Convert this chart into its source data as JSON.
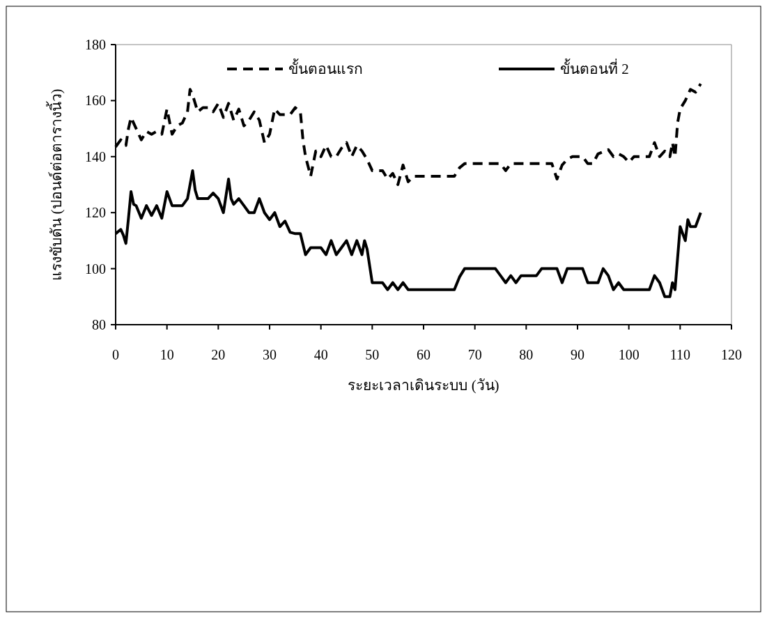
{
  "chart_data": {
    "type": "line",
    "xlabel": "ระยะเวลาเดินระบบ (วัน)",
    "ylabel": "แรงขับดัน (ปอนด์ต่อตารางนิ้ว)",
    "xlim": [
      0,
      120
    ],
    "xticks": [
      0,
      10,
      20,
      30,
      40,
      50,
      60,
      70,
      80,
      90,
      100,
      110,
      120
    ],
    "ylim": [
      80,
      180
    ],
    "yticks": [
      80,
      100,
      120,
      140,
      160,
      180
    ],
    "legend": "top",
    "grid": false,
    "marker": "none",
    "series": [
      {
        "name": "ขั้นตอนแรก",
        "color": "#000000",
        "line_style": "dashed",
        "x": [
          0,
          1,
          2,
          2.5,
          3,
          4,
          5,
          6,
          7,
          8,
          9,
          10,
          11,
          12,
          13,
          14,
          14.5,
          15,
          16,
          17,
          18,
          19,
          20,
          21,
          22,
          23,
          24,
          25,
          26,
          27,
          28,
          29,
          30,
          31,
          32,
          34,
          35,
          36,
          36.5,
          37,
          38,
          39,
          40,
          41,
          42,
          43,
          44,
          45,
          46,
          47,
          48,
          49,
          50,
          52,
          53,
          54,
          55,
          56,
          57,
          58,
          66,
          67,
          68,
          75,
          76,
          77,
          85,
          86,
          87,
          88,
          89,
          91,
          92,
          93,
          94,
          96,
          97,
          98,
          99,
          100,
          101,
          104,
          105,
          106,
          107,
          108,
          108.5,
          109,
          109.5,
          110,
          111,
          112,
          113,
          114
        ],
        "values": [
          143.5,
          146,
          144,
          150,
          154,
          150,
          146,
          149,
          148,
          149,
          148,
          157,
          148,
          151,
          152,
          156,
          164,
          162,
          156,
          157.5,
          157.5,
          156,
          159,
          154,
          159,
          153,
          157,
          151,
          153,
          156,
          153,
          145,
          148,
          157,
          155,
          155,
          157.5,
          156,
          146,
          140,
          133,
          142,
          140,
          144,
          140,
          140,
          143,
          145,
          140,
          144,
          142,
          139,
          135,
          135,
          132,
          134,
          130,
          137,
          131,
          133,
          133,
          136,
          137.5,
          137.5,
          135,
          137.5,
          137.5,
          132,
          137,
          139,
          140,
          140,
          137.5,
          137.5,
          141,
          142.5,
          140,
          141,
          140,
          138,
          140,
          140,
          145,
          140,
          142,
          140,
          145,
          140,
          152,
          157,
          160,
          164,
          163,
          166
        ]
      },
      {
        "name": "ขั้นตอนที่ 2",
        "color": "#000000",
        "line_style": "solid",
        "x": [
          0,
          1,
          1.5,
          2,
          2.5,
          3,
          3.5,
          4,
          5,
          6,
          7,
          8,
          9,
          10,
          11,
          12,
          13,
          14,
          15,
          15.5,
          16,
          18,
          19,
          20,
          21,
          22,
          22.5,
          23,
          24,
          25,
          26,
          27,
          28,
          29,
          30,
          31,
          32,
          33,
          34,
          35,
          36,
          37,
          38,
          40,
          41,
          42,
          43,
          44,
          45,
          46,
          47,
          48,
          48.5,
          49,
          50,
          52,
          53,
          54,
          55,
          56,
          57,
          66,
          67,
          68,
          74,
          75,
          76,
          77,
          78,
          79,
          82,
          83,
          86,
          87,
          88,
          91,
          92,
          94,
          95,
          96,
          97,
          98,
          99,
          104,
          105,
          106,
          107,
          108,
          108.5,
          109,
          110,
          111,
          111.5,
          112,
          113,
          114
        ],
        "values": [
          112.5,
          114,
          112,
          109,
          118,
          127.5,
          123,
          122.5,
          118,
          122.5,
          119,
          122.5,
          118,
          127.5,
          122.5,
          122.5,
          122.5,
          125,
          135,
          128,
          125,
          125,
          127,
          125,
          120,
          132,
          125,
          123,
          125,
          122.5,
          120,
          120,
          125,
          120,
          117.5,
          120,
          115,
          117,
          113,
          112.5,
          112.5,
          105,
          107.5,
          107.5,
          105,
          110,
          105,
          107.5,
          110,
          105,
          110,
          105,
          110,
          107,
          95,
          95,
          92.5,
          95,
          92.5,
          95,
          92.5,
          92.5,
          97,
          100,
          100,
          97.5,
          95,
          97.5,
          95,
          97.5,
          97.5,
          100,
          100,
          95,
          100,
          100,
          95,
          95,
          100,
          97.5,
          92.5,
          95,
          92.5,
          92.5,
          97.5,
          95,
          90,
          90,
          95,
          92.5,
          115,
          110,
          117.5,
          115,
          115,
          120
        ]
      }
    ]
  }
}
